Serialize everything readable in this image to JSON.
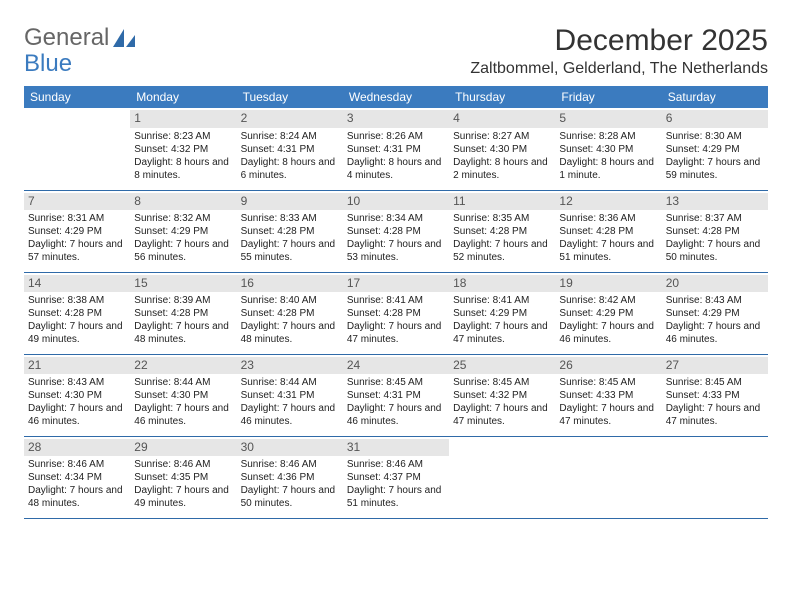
{
  "branding": {
    "word1": "General",
    "word2": "Blue",
    "logo_fill": "#2f6aa8"
  },
  "header": {
    "month_title": "December 2025",
    "location": "Zaltbommel, Gelderland, The Netherlands"
  },
  "colors": {
    "header_bg": "#3b7bbf",
    "header_text": "#ffffff",
    "daynum_bg": "#e6e6e6",
    "daynum_text": "#555555",
    "row_border": "#2f6aa8",
    "page_bg": "#ffffff"
  },
  "weekdays": [
    "Sunday",
    "Monday",
    "Tuesday",
    "Wednesday",
    "Thursday",
    "Friday",
    "Saturday"
  ],
  "weeks": [
    [
      null,
      {
        "d": "1",
        "sr": "8:23 AM",
        "ss": "4:32 PM",
        "dl": "8 hours and 8 minutes."
      },
      {
        "d": "2",
        "sr": "8:24 AM",
        "ss": "4:31 PM",
        "dl": "8 hours and 6 minutes."
      },
      {
        "d": "3",
        "sr": "8:26 AM",
        "ss": "4:31 PM",
        "dl": "8 hours and 4 minutes."
      },
      {
        "d": "4",
        "sr": "8:27 AM",
        "ss": "4:30 PM",
        "dl": "8 hours and 2 minutes."
      },
      {
        "d": "5",
        "sr": "8:28 AM",
        "ss": "4:30 PM",
        "dl": "8 hours and 1 minute."
      },
      {
        "d": "6",
        "sr": "8:30 AM",
        "ss": "4:29 PM",
        "dl": "7 hours and 59 minutes."
      }
    ],
    [
      {
        "d": "7",
        "sr": "8:31 AM",
        "ss": "4:29 PM",
        "dl": "7 hours and 57 minutes."
      },
      {
        "d": "8",
        "sr": "8:32 AM",
        "ss": "4:29 PM",
        "dl": "7 hours and 56 minutes."
      },
      {
        "d": "9",
        "sr": "8:33 AM",
        "ss": "4:28 PM",
        "dl": "7 hours and 55 minutes."
      },
      {
        "d": "10",
        "sr": "8:34 AM",
        "ss": "4:28 PM",
        "dl": "7 hours and 53 minutes."
      },
      {
        "d": "11",
        "sr": "8:35 AM",
        "ss": "4:28 PM",
        "dl": "7 hours and 52 minutes."
      },
      {
        "d": "12",
        "sr": "8:36 AM",
        "ss": "4:28 PM",
        "dl": "7 hours and 51 minutes."
      },
      {
        "d": "13",
        "sr": "8:37 AM",
        "ss": "4:28 PM",
        "dl": "7 hours and 50 minutes."
      }
    ],
    [
      {
        "d": "14",
        "sr": "8:38 AM",
        "ss": "4:28 PM",
        "dl": "7 hours and 49 minutes."
      },
      {
        "d": "15",
        "sr": "8:39 AM",
        "ss": "4:28 PM",
        "dl": "7 hours and 48 minutes."
      },
      {
        "d": "16",
        "sr": "8:40 AM",
        "ss": "4:28 PM",
        "dl": "7 hours and 48 minutes."
      },
      {
        "d": "17",
        "sr": "8:41 AM",
        "ss": "4:28 PM",
        "dl": "7 hours and 47 minutes."
      },
      {
        "d": "18",
        "sr": "8:41 AM",
        "ss": "4:29 PM",
        "dl": "7 hours and 47 minutes."
      },
      {
        "d": "19",
        "sr": "8:42 AM",
        "ss": "4:29 PM",
        "dl": "7 hours and 46 minutes."
      },
      {
        "d": "20",
        "sr": "8:43 AM",
        "ss": "4:29 PM",
        "dl": "7 hours and 46 minutes."
      }
    ],
    [
      {
        "d": "21",
        "sr": "8:43 AM",
        "ss": "4:30 PM",
        "dl": "7 hours and 46 minutes."
      },
      {
        "d": "22",
        "sr": "8:44 AM",
        "ss": "4:30 PM",
        "dl": "7 hours and 46 minutes."
      },
      {
        "d": "23",
        "sr": "8:44 AM",
        "ss": "4:31 PM",
        "dl": "7 hours and 46 minutes."
      },
      {
        "d": "24",
        "sr": "8:45 AM",
        "ss": "4:31 PM",
        "dl": "7 hours and 46 minutes."
      },
      {
        "d": "25",
        "sr": "8:45 AM",
        "ss": "4:32 PM",
        "dl": "7 hours and 47 minutes."
      },
      {
        "d": "26",
        "sr": "8:45 AM",
        "ss": "4:33 PM",
        "dl": "7 hours and 47 minutes."
      },
      {
        "d": "27",
        "sr": "8:45 AM",
        "ss": "4:33 PM",
        "dl": "7 hours and 47 minutes."
      }
    ],
    [
      {
        "d": "28",
        "sr": "8:46 AM",
        "ss": "4:34 PM",
        "dl": "7 hours and 48 minutes."
      },
      {
        "d": "29",
        "sr": "8:46 AM",
        "ss": "4:35 PM",
        "dl": "7 hours and 49 minutes."
      },
      {
        "d": "30",
        "sr": "8:46 AM",
        "ss": "4:36 PM",
        "dl": "7 hours and 50 minutes."
      },
      {
        "d": "31",
        "sr": "8:46 AM",
        "ss": "4:37 PM",
        "dl": "7 hours and 51 minutes."
      },
      null,
      null,
      null
    ]
  ],
  "labels": {
    "sunrise_prefix": "Sunrise: ",
    "sunset_prefix": "Sunset: ",
    "daylight_prefix": "Daylight: "
  }
}
